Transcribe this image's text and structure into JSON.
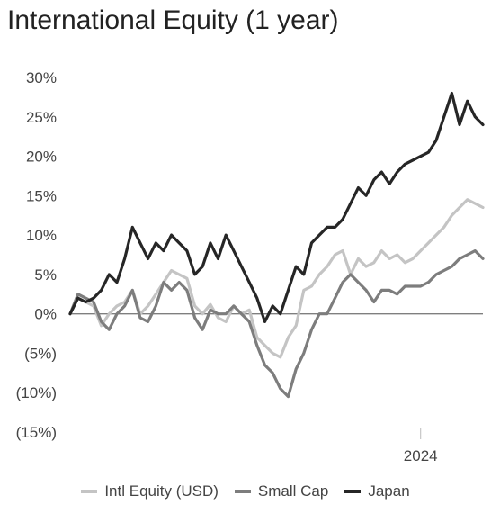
{
  "colors": {
    "intl": "#c4c4c4",
    "smallcap": "#7d7d7d",
    "japan": "#262626",
    "axis": "#7f7f7f",
    "text": "#444444"
  },
  "chart_data": {
    "type": "line",
    "title": "International Equity (1 year)",
    "xlabel": "",
    "ylabel": "",
    "ylim": [
      -15,
      30
    ],
    "yticks": [
      30,
      25,
      20,
      15,
      10,
      5,
      0,
      -5,
      -10,
      -15
    ],
    "ytick_labels": [
      "30%",
      "25%",
      "20%",
      "15%",
      "10%",
      "5%",
      "0%",
      "(5%)",
      "(10%)",
      "(15%)"
    ],
    "x_range": [
      "2023-02-20",
      "2024-02-26"
    ],
    "xticks": [
      {
        "x": "2024-01-01",
        "label": "2024"
      }
    ],
    "grid": false,
    "legend_position": "bottom",
    "x": [
      "2023-02-20",
      "2023-02-27",
      "2023-03-06",
      "2023-03-13",
      "2023-03-20",
      "2023-03-27",
      "2023-04-03",
      "2023-04-10",
      "2023-04-17",
      "2023-04-24",
      "2023-05-01",
      "2023-05-08",
      "2023-05-15",
      "2023-05-22",
      "2023-05-29",
      "2023-06-05",
      "2023-06-12",
      "2023-06-19",
      "2023-06-26",
      "2023-07-03",
      "2023-07-10",
      "2023-07-17",
      "2023-07-24",
      "2023-07-31",
      "2023-08-07",
      "2023-08-14",
      "2023-08-21",
      "2023-08-28",
      "2023-09-04",
      "2023-09-11",
      "2023-09-18",
      "2023-09-25",
      "2023-10-02",
      "2023-10-09",
      "2023-10-16",
      "2023-10-23",
      "2023-10-30",
      "2023-11-06",
      "2023-11-13",
      "2023-11-20",
      "2023-11-27",
      "2023-12-04",
      "2023-12-11",
      "2023-12-18",
      "2023-12-25",
      "2024-01-01",
      "2024-01-08",
      "2024-01-15",
      "2024-01-22",
      "2024-01-29",
      "2024-02-05",
      "2024-02-12",
      "2024-02-19",
      "2024-02-26"
    ],
    "series": [
      {
        "name": "Intl Equity (USD)",
        "color": "#c4c4c4",
        "values": [
          0,
          2,
          1.5,
          1,
          -1.5,
          0,
          1,
          1.5,
          3,
          0,
          1,
          2.5,
          4,
          5.5,
          5,
          4.5,
          1,
          0,
          1.2,
          -0.5,
          -1,
          1,
          0,
          0.5,
          -3,
          -4,
          -5,
          -5.5,
          -3,
          -1.5,
          3,
          3.5,
          5,
          6,
          7.5,
          8,
          5,
          7,
          6,
          6.5,
          8,
          7,
          7.5,
          6.5,
          7,
          8,
          9,
          10,
          11,
          12.5,
          13.5,
          14.5,
          14,
          13.5
        ]
      },
      {
        "name": "Small Cap",
        "color": "#7d7d7d",
        "values": [
          0,
          2.5,
          2,
          1.5,
          -1,
          -2,
          0,
          1,
          3,
          -0.5,
          -1,
          1,
          4,
          3,
          4,
          3,
          -0.5,
          -2,
          0.5,
          0,
          0,
          1,
          0,
          -1,
          -4,
          -6.5,
          -7.5,
          -9.5,
          -10.5,
          -7,
          -5,
          -2,
          0,
          0,
          2,
          4,
          5,
          4,
          3,
          1.5,
          3,
          3,
          2.5,
          3.5,
          3.5,
          3.5,
          4,
          5,
          5.5,
          6,
          7,
          7.5,
          8,
          7
        ]
      },
      {
        "name": "Japan",
        "color": "#262626",
        "values": [
          0,
          2,
          1.5,
          2,
          3,
          5,
          4,
          7,
          11,
          9,
          7,
          9,
          8,
          10,
          9,
          8,
          5,
          6,
          9,
          7,
          10,
          8,
          6,
          4,
          2,
          -1,
          1,
          0,
          3,
          6,
          5,
          9,
          10,
          11,
          11,
          12,
          14,
          16,
          15,
          17,
          18,
          16.5,
          18,
          19,
          19.5,
          20,
          20.5,
          22,
          25,
          28,
          24,
          27,
          25,
          24
        ]
      }
    ]
  }
}
